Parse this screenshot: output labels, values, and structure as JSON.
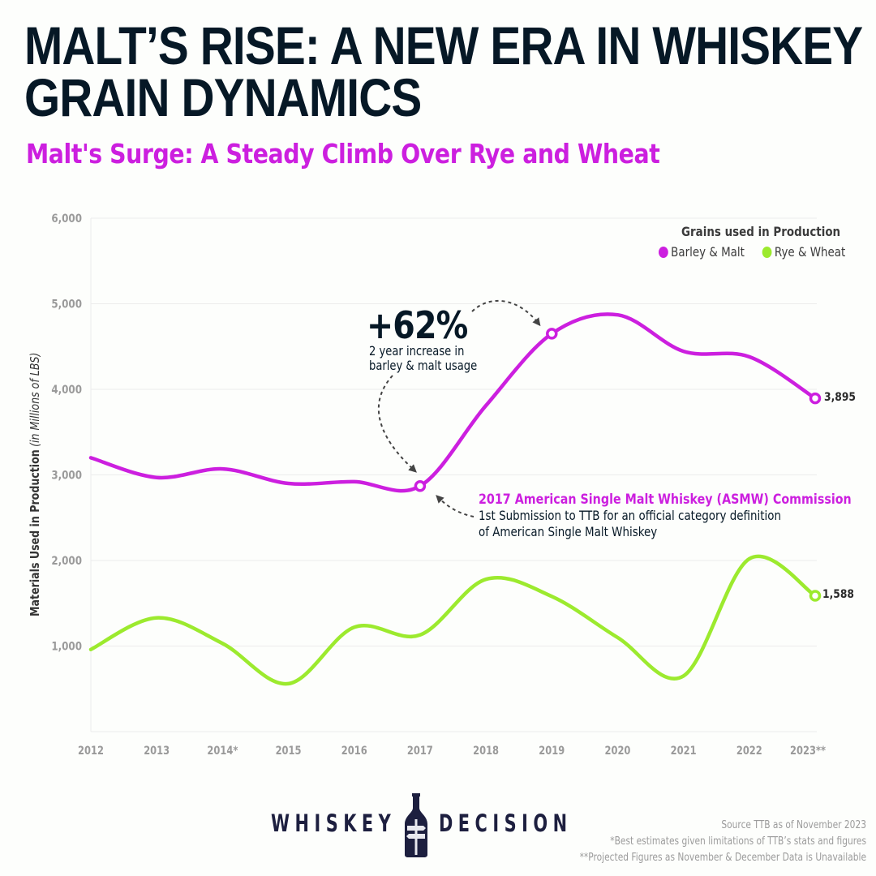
{
  "header": {
    "title_line1": "MALT’S RISE: A NEW ERA IN WHISKEY",
    "title_line2": "GRAIN DYNAMICS",
    "subtitle": "Malt's Surge: A Steady Climb Over Rye and Wheat"
  },
  "legend": {
    "title": "Grains used in Production",
    "items": [
      {
        "label": "Barley & Malt",
        "color": "#cc1fdf"
      },
      {
        "label": "Rye & Wheat",
        "color": "#9cea2e"
      }
    ]
  },
  "axis": {
    "y_label_bold": "Materials Used in Production",
    "y_label_italic": "(in  Millions of LBS)"
  },
  "annotations": {
    "increase_value": "+62%",
    "increase_line1": "2 year increase in",
    "increase_line2": "barley & malt usage",
    "asmw_title": "2017 American Single Malt Whiskey (ASMW) Commission",
    "asmw_line1": "1st Submission to TTB for an official category definition",
    "asmw_line2": "of American Single Malt Whiskey",
    "barley_end_value": "3,895",
    "rye_end_value": "1,588"
  },
  "chart_data": {
    "type": "line",
    "title": "Malt's Surge: A Steady Climb Over Rye and Wheat",
    "xlabel": "",
    "ylabel": "Materials Used in Production (in Millions of LBS)",
    "categories": [
      "2012",
      "2013",
      "2014*",
      "2015",
      "2016",
      "2017",
      "2018",
      "2019",
      "2020",
      "2021",
      "2022",
      "2023**"
    ],
    "yticks": [
      "1,000",
      "2,000",
      "3,000",
      "4,000",
      "5,000",
      "6,000"
    ],
    "ytick_values": [
      1000,
      2000,
      3000,
      4000,
      5000,
      6000
    ],
    "ylim": [
      0,
      6000
    ],
    "grid": true,
    "legend_position": "top-right",
    "series": [
      {
        "name": "Barley & Malt",
        "color": "#cc1fdf",
        "values": [
          3200,
          2970,
          3070,
          2900,
          2920,
          2870,
          3810,
          4650,
          4870,
          4445,
          4380,
          3895
        ],
        "markers": [
          5,
          7,
          11
        ]
      },
      {
        "name": "Rye & Wheat",
        "color": "#9cea2e",
        "values": [
          960,
          1330,
          1030,
          560,
          1220,
          1130,
          1780,
          1580,
          1100,
          650,
          2020,
          1588
        ],
        "markers": [
          11
        ]
      }
    ]
  },
  "logo": {
    "left_word": "WHISKEY",
    "right_word": "DECISION"
  },
  "footnotes": {
    "source": "Source TTB as of November 2023",
    "note1": "*Best estimates given limitations of TTB’s stats and figures",
    "note2": "**Projected Figures as November & December Data is Unavailable"
  }
}
